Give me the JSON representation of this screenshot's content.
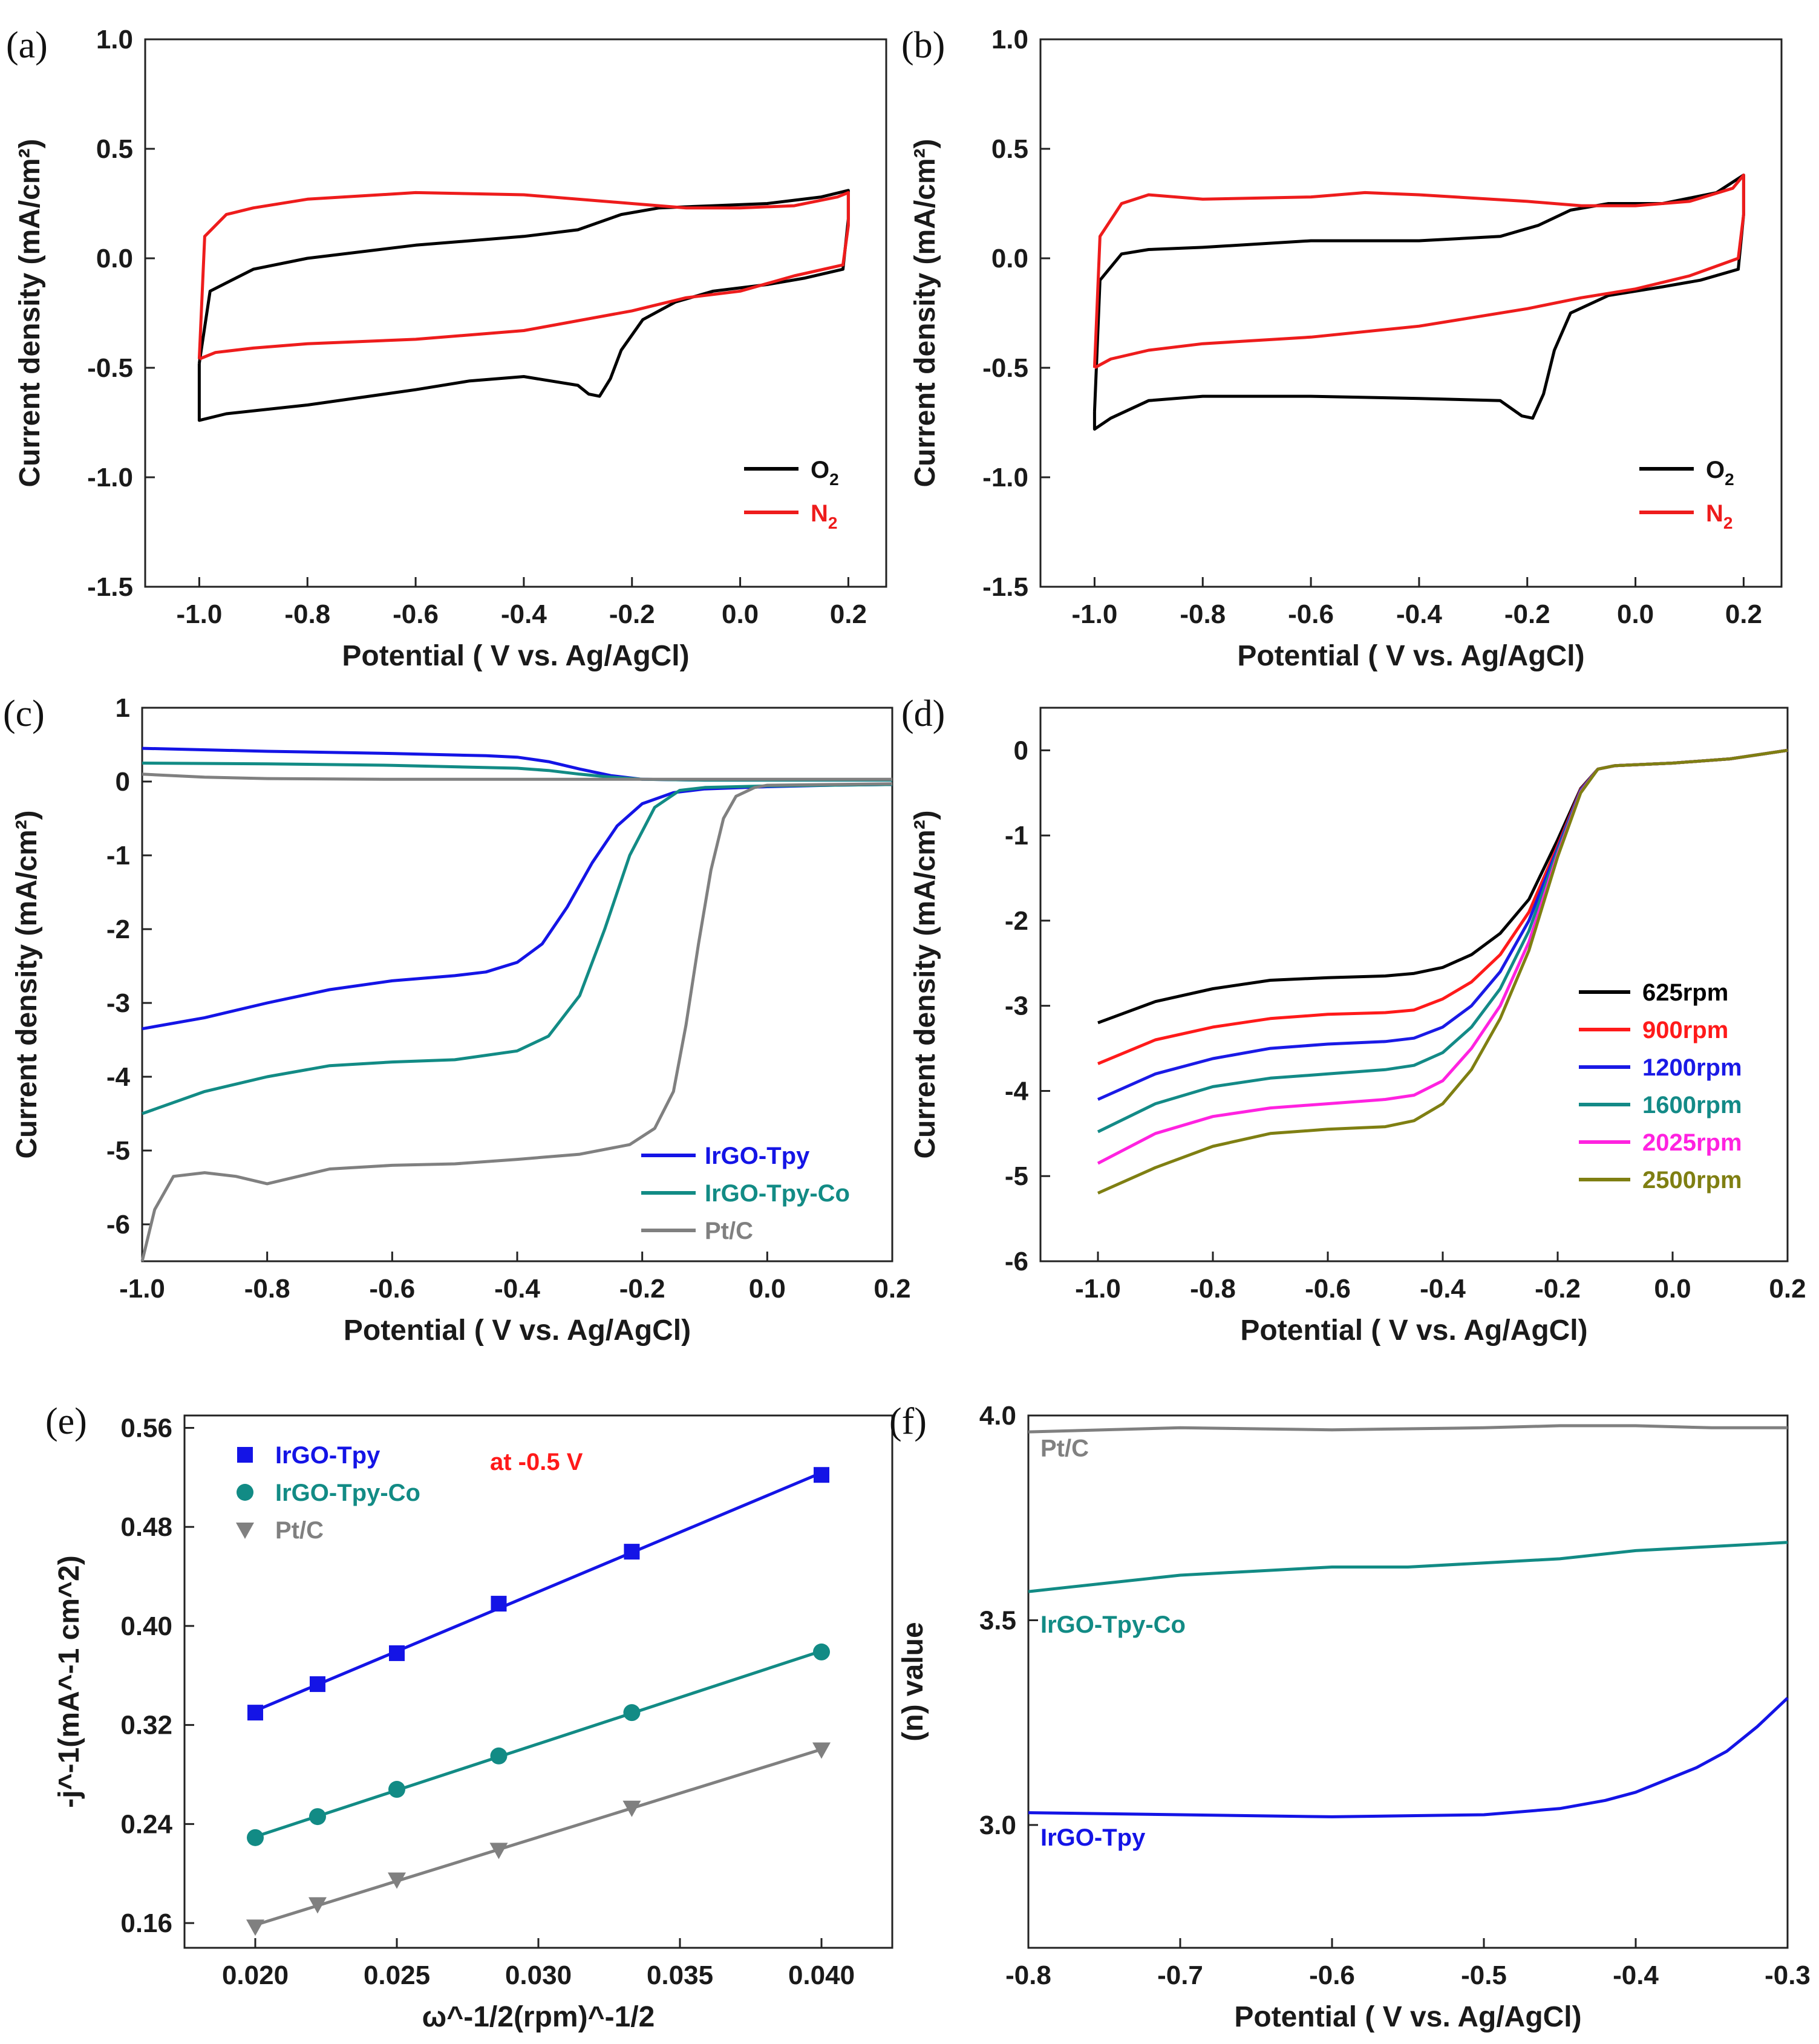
{
  "chart_data": [
    {
      "panel": "(a)",
      "type": "line",
      "xlabel": "Potential ( V vs. Ag/AgCl)",
      "ylabel": "Current density (mA/cm²)",
      "xlim": [
        -1.1,
        0.27
      ],
      "ylim": [
        -1.5,
        1.0
      ],
      "xticks": [
        -1.0,
        -0.8,
        -0.6,
        -0.4,
        -0.2,
        0.0,
        0.2
      ],
      "yticks": [
        -1.5,
        -1.0,
        -0.5,
        0.0,
        0.5,
        1.0
      ],
      "legend_position": "lower-right",
      "series": [
        {
          "name": "O",
          "sub": "2",
          "color": "#000000",
          "x": [
            -1.0,
            -0.98,
            -0.9,
            -0.8,
            -0.6,
            -0.4,
            -0.3,
            -0.22,
            -0.15,
            -0.05,
            0.05,
            0.15,
            0.2,
            0.2,
            0.19,
            0.12,
            0.05,
            -0.05,
            -0.12,
            -0.18,
            -0.22,
            -0.24,
            -0.26,
            -0.28,
            -0.3,
            -0.4,
            -0.5,
            -0.6,
            -0.8,
            -0.95,
            -1.0,
            -1.0
          ],
          "y": [
            -0.48,
            -0.15,
            -0.05,
            0.0,
            0.06,
            0.1,
            0.13,
            0.2,
            0.23,
            0.24,
            0.25,
            0.28,
            0.31,
            0.18,
            -0.05,
            -0.09,
            -0.12,
            -0.15,
            -0.2,
            -0.28,
            -0.42,
            -0.55,
            -0.63,
            -0.62,
            -0.58,
            -0.54,
            -0.56,
            -0.6,
            -0.67,
            -0.71,
            -0.74,
            -0.48
          ]
        },
        {
          "name": "N",
          "sub": "2",
          "color": "#ee1c1c",
          "x": [
            -1.0,
            -0.99,
            -0.95,
            -0.9,
            -0.8,
            -0.6,
            -0.4,
            -0.2,
            -0.1,
            0.0,
            0.1,
            0.18,
            0.2,
            0.2,
            0.19,
            0.1,
            0.0,
            -0.1,
            -0.2,
            -0.4,
            -0.6,
            -0.8,
            -0.9,
            -0.97,
            -1.0
          ],
          "y": [
            -0.46,
            0.1,
            0.2,
            0.23,
            0.27,
            0.3,
            0.29,
            0.25,
            0.23,
            0.23,
            0.24,
            0.28,
            0.3,
            0.15,
            -0.03,
            -0.08,
            -0.15,
            -0.18,
            -0.24,
            -0.33,
            -0.37,
            -0.39,
            -0.41,
            -0.43,
            -0.46
          ]
        }
      ]
    },
    {
      "panel": "(b)",
      "type": "line",
      "xlabel": "Potential ( V vs. Ag/AgCl)",
      "ylabel": "Current density (mA/cm²)",
      "xlim": [
        -1.1,
        0.27
      ],
      "ylim": [
        -1.5,
        1.0
      ],
      "xticks": [
        -1.0,
        -0.8,
        -0.6,
        -0.4,
        -0.2,
        0.0,
        0.2
      ],
      "yticks": [
        -1.5,
        -1.0,
        -0.5,
        0.0,
        0.5,
        1.0
      ],
      "legend_position": "lower-right",
      "series": [
        {
          "name": "O",
          "sub": "2",
          "color": "#000000",
          "x": [
            -1.0,
            -0.99,
            -0.95,
            -0.9,
            -0.8,
            -0.6,
            -0.4,
            -0.25,
            -0.18,
            -0.12,
            -0.05,
            0.05,
            0.15,
            0.2,
            0.2,
            0.19,
            0.12,
            0.05,
            -0.05,
            -0.12,
            -0.15,
            -0.17,
            -0.19,
            -0.21,
            -0.25,
            -0.4,
            -0.6,
            -0.8,
            -0.9,
            -0.97,
            -1.0,
            -1.0
          ],
          "y": [
            -0.7,
            -0.1,
            0.02,
            0.04,
            0.05,
            0.08,
            0.08,
            0.1,
            0.15,
            0.22,
            0.25,
            0.25,
            0.3,
            0.38,
            0.2,
            -0.05,
            -0.1,
            -0.13,
            -0.17,
            -0.25,
            -0.42,
            -0.62,
            -0.73,
            -0.72,
            -0.65,
            -0.64,
            -0.63,
            -0.63,
            -0.65,
            -0.73,
            -0.78,
            -0.7
          ]
        },
        {
          "name": "N",
          "sub": "2",
          "color": "#ee1c1c",
          "x": [
            -1.0,
            -0.99,
            -0.95,
            -0.9,
            -0.8,
            -0.6,
            -0.5,
            -0.4,
            -0.2,
            -0.1,
            0.0,
            0.1,
            0.18,
            0.2,
            0.2,
            0.19,
            0.1,
            0.0,
            -0.1,
            -0.2,
            -0.4,
            -0.6,
            -0.8,
            -0.9,
            -0.97,
            -1.0
          ],
          "y": [
            -0.5,
            0.1,
            0.25,
            0.29,
            0.27,
            0.28,
            0.3,
            0.29,
            0.26,
            0.24,
            0.24,
            0.26,
            0.32,
            0.38,
            0.2,
            0.0,
            -0.08,
            -0.14,
            -0.18,
            -0.23,
            -0.31,
            -0.36,
            -0.39,
            -0.42,
            -0.46,
            -0.5
          ]
        }
      ]
    },
    {
      "panel": "(c)",
      "type": "line",
      "xlabel": "Potential ( V vs. Ag/AgCl)",
      "ylabel": "Current density (mA/cm²)",
      "xlim": [
        -1.0,
        0.2
      ],
      "ylim": [
        -6.5,
        1.0
      ],
      "xticks": [
        -1.0,
        -0.8,
        -0.6,
        -0.4,
        -0.2,
        0.0,
        0.2
      ],
      "yticks": [
        -6,
        -5,
        -4,
        -3,
        -2,
        -1,
        0,
        1
      ],
      "legend_position": "lower-right",
      "series": [
        {
          "name": "IrGO-Tpy",
          "color": "#1414e6",
          "x": [
            -1.0,
            -0.9,
            -0.8,
            -0.7,
            -0.6,
            -0.5,
            -0.45,
            -0.4,
            -0.36,
            -0.32,
            -0.28,
            -0.24,
            -0.2,
            -0.15,
            -0.1,
            0.0,
            0.1,
            0.2
          ],
          "y": [
            -3.35,
            -3.2,
            -3.0,
            -2.82,
            -2.7,
            -2.63,
            -2.58,
            -2.45,
            -2.2,
            -1.7,
            -1.1,
            -0.6,
            -0.3,
            -0.15,
            -0.1,
            -0.07,
            -0.05,
            -0.04
          ]
        },
        {
          "name": "IrGO-Tpy-Co",
          "color": "#128b85",
          "x": [
            -1.0,
            -0.9,
            -0.8,
            -0.7,
            -0.6,
            -0.5,
            -0.4,
            -0.35,
            -0.3,
            -0.26,
            -0.22,
            -0.18,
            -0.14,
            -0.1,
            0.0,
            0.1,
            0.2
          ],
          "y": [
            -4.5,
            -4.2,
            -4.0,
            -3.85,
            -3.8,
            -3.77,
            -3.65,
            -3.45,
            -2.9,
            -2.0,
            -1.0,
            -0.35,
            -0.12,
            -0.08,
            -0.06,
            -0.05,
            -0.04
          ]
        },
        {
          "name": "Pt/C",
          "color": "#808080",
          "x": [
            -1.0,
            -0.98,
            -0.95,
            -0.9,
            -0.85,
            -0.8,
            -0.75,
            -0.7,
            -0.6,
            -0.5,
            -0.4,
            -0.3,
            -0.22,
            -0.18,
            -0.15,
            -0.13,
            -0.11,
            -0.09,
            -0.07,
            -0.05,
            -0.02,
            0.0,
            0.1,
            0.2
          ],
          "y": [
            -6.5,
            -5.8,
            -5.35,
            -5.3,
            -5.35,
            -5.45,
            -5.35,
            -5.25,
            -5.2,
            -5.18,
            -5.12,
            -5.05,
            -4.92,
            -4.7,
            -4.2,
            -3.3,
            -2.2,
            -1.2,
            -0.5,
            -0.2,
            -0.08,
            -0.05,
            -0.04,
            -0.03
          ]
        },
        {
          "name": "IrGO-Tpy (ring)",
          "color": "#1414e6",
          "legend": false,
          "x": [
            -1.0,
            -0.8,
            -0.6,
            -0.45,
            -0.4,
            -0.35,
            -0.3,
            -0.25,
            -0.2,
            -0.1,
            0.0,
            0.1,
            0.2
          ],
          "y": [
            0.45,
            0.41,
            0.38,
            0.35,
            0.33,
            0.27,
            0.17,
            0.08,
            0.03,
            0.02,
            0.02,
            0.02,
            0.02
          ]
        },
        {
          "name": "IrGO-Tpy-Co (ring)",
          "color": "#128b85",
          "legend": false,
          "x": [
            -1.0,
            -0.8,
            -0.6,
            -0.4,
            -0.35,
            -0.3,
            -0.25,
            -0.2,
            -0.1,
            0.0,
            0.1,
            0.2
          ],
          "y": [
            0.25,
            0.24,
            0.22,
            0.18,
            0.15,
            0.1,
            0.06,
            0.03,
            0.02,
            0.02,
            0.02,
            0.02
          ]
        },
        {
          "name": "Pt/C (ring)",
          "color": "#808080",
          "legend": false,
          "x": [
            -1.0,
            -0.9,
            -0.8,
            -0.6,
            -0.4,
            -0.2,
            0.0,
            0.2
          ],
          "y": [
            0.1,
            0.06,
            0.04,
            0.03,
            0.03,
            0.03,
            0.03,
            0.03
          ]
        }
      ]
    },
    {
      "panel": "(d)",
      "type": "line",
      "xlabel": "Potential ( V vs. Ag/AgCl)",
      "ylabel": "Current density (mA/cm²)",
      "xlim": [
        -1.1,
        0.2
      ],
      "ylim": [
        -6,
        0.5
      ],
      "xticks": [
        -1.0,
        -0.8,
        -0.6,
        -0.4,
        -0.2,
        0.0,
        0.2
      ],
      "yticks": [
        -6,
        -5,
        -4,
        -3,
        -2,
        -1,
        0
      ],
      "legend_position": "right",
      "common_x": [
        -1.0,
        -0.9,
        -0.8,
        -0.7,
        -0.6,
        -0.5,
        -0.45,
        -0.4,
        -0.35,
        -0.3,
        -0.25,
        -0.2,
        -0.16,
        -0.13,
        -0.1,
        0.0,
        0.1,
        0.2
      ],
      "series": [
        {
          "name": "625rpm",
          "color": "#000000",
          "y": [
            -3.2,
            -2.95,
            -2.8,
            -2.7,
            -2.67,
            -2.65,
            -2.62,
            -2.55,
            -2.4,
            -2.15,
            -1.75,
            -1.05,
            -0.45,
            -0.22,
            -0.18,
            -0.15,
            -0.1,
            0.0
          ]
        },
        {
          "name": "900rpm",
          "color": "#ff1a1a",
          "y": [
            -3.68,
            -3.4,
            -3.25,
            -3.15,
            -3.1,
            -3.08,
            -3.05,
            -2.92,
            -2.72,
            -2.4,
            -1.9,
            -1.12,
            -0.46,
            -0.22,
            -0.18,
            -0.15,
            -0.1,
            0.0
          ]
        },
        {
          "name": "1200rpm",
          "color": "#1a1ae6",
          "y": [
            -4.1,
            -3.8,
            -3.62,
            -3.5,
            -3.45,
            -3.42,
            -3.38,
            -3.25,
            -3.0,
            -2.6,
            -2.0,
            -1.15,
            -0.47,
            -0.22,
            -0.18,
            -0.15,
            -0.1,
            0.0
          ]
        },
        {
          "name": "1600rpm",
          "color": "#138a87",
          "y": [
            -4.48,
            -4.15,
            -3.95,
            -3.85,
            -3.8,
            -3.75,
            -3.7,
            -3.55,
            -3.25,
            -2.8,
            -2.12,
            -1.18,
            -0.48,
            -0.22,
            -0.18,
            -0.15,
            -0.1,
            0.0
          ]
        },
        {
          "name": "2025rpm",
          "color": "#ff22e0",
          "y": [
            -4.85,
            -4.5,
            -4.3,
            -4.2,
            -4.15,
            -4.1,
            -4.05,
            -3.88,
            -3.5,
            -3.0,
            -2.25,
            -1.22,
            -0.49,
            -0.22,
            -0.18,
            -0.15,
            -0.1,
            0.0
          ]
        },
        {
          "name": "2500rpm",
          "color": "#7f7f12",
          "y": [
            -5.2,
            -4.9,
            -4.65,
            -4.5,
            -4.45,
            -4.42,
            -4.35,
            -4.15,
            -3.75,
            -3.15,
            -2.35,
            -1.25,
            -0.5,
            -0.22,
            -0.18,
            -0.15,
            -0.1,
            0.0
          ]
        }
      ]
    },
    {
      "panel": "(e)",
      "type": "scatter",
      "annotation": "at -0.5 V",
      "xlabel": "ω^-1/2(rpm)^-1/2",
      "ylabel": "-j^-1(mA^-1 cm^2)",
      "xlim": [
        0.0175,
        0.0425
      ],
      "ylim": [
        0.14,
        0.57
      ],
      "xticks": [
        0.02,
        0.025,
        0.03,
        0.035,
        0.04
      ],
      "yticks": [
        0.16,
        0.24,
        0.32,
        0.4,
        0.48,
        0.56
      ],
      "x": [
        0.02,
        0.0222,
        0.025,
        0.0286,
        0.0333,
        0.04
      ],
      "legend_position": "top-left",
      "series": [
        {
          "name": "IrGO-Tpy",
          "color": "#1414e6",
          "marker": "square",
          "values": [
            0.33,
            0.353,
            0.378,
            0.418,
            0.46,
            0.522
          ]
        },
        {
          "name": "IrGO-Tpy-Co",
          "color": "#128b85",
          "marker": "circle",
          "values": [
            0.229,
            0.246,
            0.268,
            0.295,
            0.33,
            0.379
          ]
        },
        {
          "name": "Pt/C",
          "color": "#808080",
          "marker": "triangle-down",
          "values": [
            0.157,
            0.175,
            0.195,
            0.219,
            0.253,
            0.3
          ]
        }
      ]
    },
    {
      "panel": "(f)",
      "type": "line",
      "xlabel": "Potential ( V vs. Ag/AgCl)",
      "ylabel": "(n) value",
      "xlim": [
        -0.8,
        -0.3
      ],
      "ylim": [
        2.7,
        4.0
      ],
      "xticks": [
        -0.8,
        -0.7,
        -0.6,
        -0.5,
        -0.4,
        -0.3
      ],
      "yticks": [
        3.0,
        3.5,
        4.0
      ],
      "legend_position": "inline",
      "series": [
        {
          "name": "Pt/C",
          "color": "#808080",
          "x": [
            -0.8,
            -0.7,
            -0.6,
            -0.5,
            -0.45,
            -0.4,
            -0.35,
            -0.3
          ],
          "y": [
            3.96,
            3.97,
            3.965,
            3.97,
            3.975,
            3.975,
            3.97,
            3.97
          ]
        },
        {
          "name": "IrGO-Tpy-Co",
          "color": "#128b85",
          "x": [
            -0.8,
            -0.75,
            -0.7,
            -0.65,
            -0.6,
            -0.55,
            -0.5,
            -0.45,
            -0.4,
            -0.35,
            -0.3
          ],
          "y": [
            3.57,
            3.59,
            3.61,
            3.62,
            3.63,
            3.63,
            3.64,
            3.65,
            3.67,
            3.68,
            3.69
          ]
        },
        {
          "name": "IrGO-Tpy",
          "color": "#1414e6",
          "x": [
            -0.8,
            -0.7,
            -0.6,
            -0.5,
            -0.45,
            -0.42,
            -0.4,
            -0.38,
            -0.36,
            -0.34,
            -0.32,
            -0.3
          ],
          "y": [
            3.03,
            3.025,
            3.02,
            3.025,
            3.04,
            3.06,
            3.08,
            3.11,
            3.14,
            3.18,
            3.24,
            3.31
          ]
        }
      ]
    }
  ]
}
